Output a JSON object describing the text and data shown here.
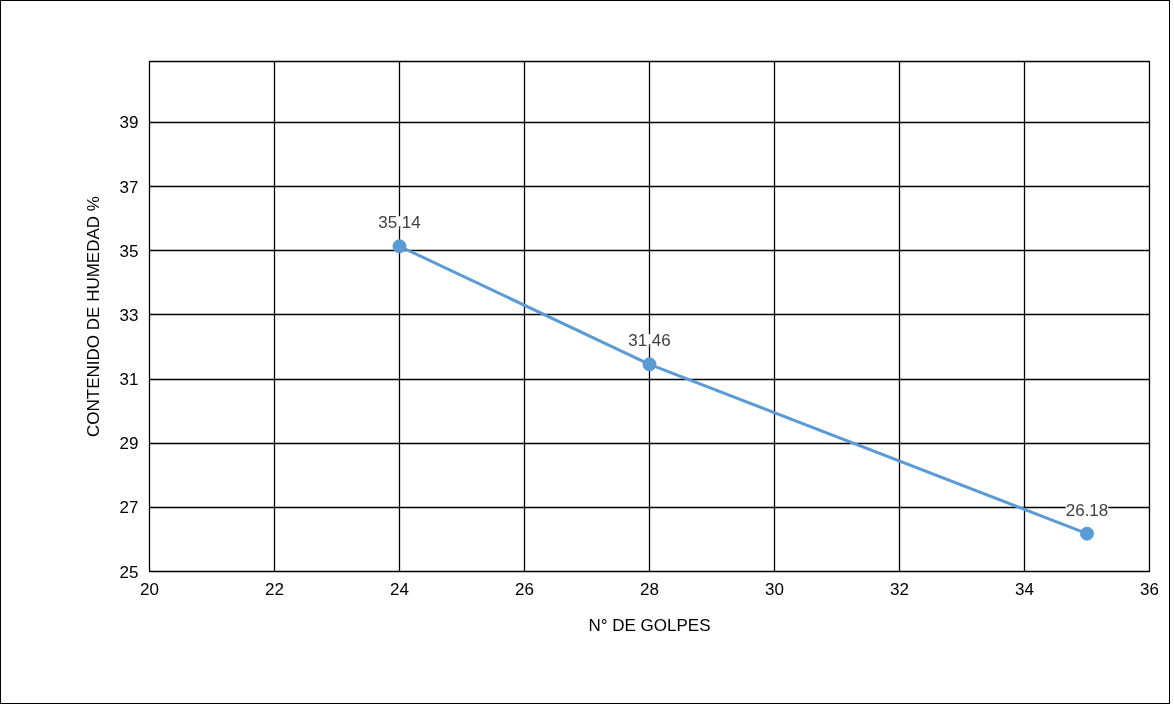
{
  "chart_data": {
    "type": "line",
    "xlabel": "N° DE GOLPES",
    "ylabel": "CONTENIDO DE HUMEDAD %",
    "x": [
      24,
      28,
      35
    ],
    "series": [
      {
        "color": "#5b9bd5",
        "values": [
          35.14,
          31.46,
          26.18
        ]
      }
    ],
    "xlim": [
      20,
      36
    ],
    "xticks": [
      20,
      22,
      24,
      26,
      28,
      30,
      32,
      34,
      36
    ],
    "ylim": [
      25,
      40.9
    ],
    "yticks": [
      25,
      27,
      29,
      31,
      33,
      35,
      37,
      39
    ],
    "grid": true,
    "marker": "circle",
    "line_style": "solid",
    "data_labels": true
  }
}
